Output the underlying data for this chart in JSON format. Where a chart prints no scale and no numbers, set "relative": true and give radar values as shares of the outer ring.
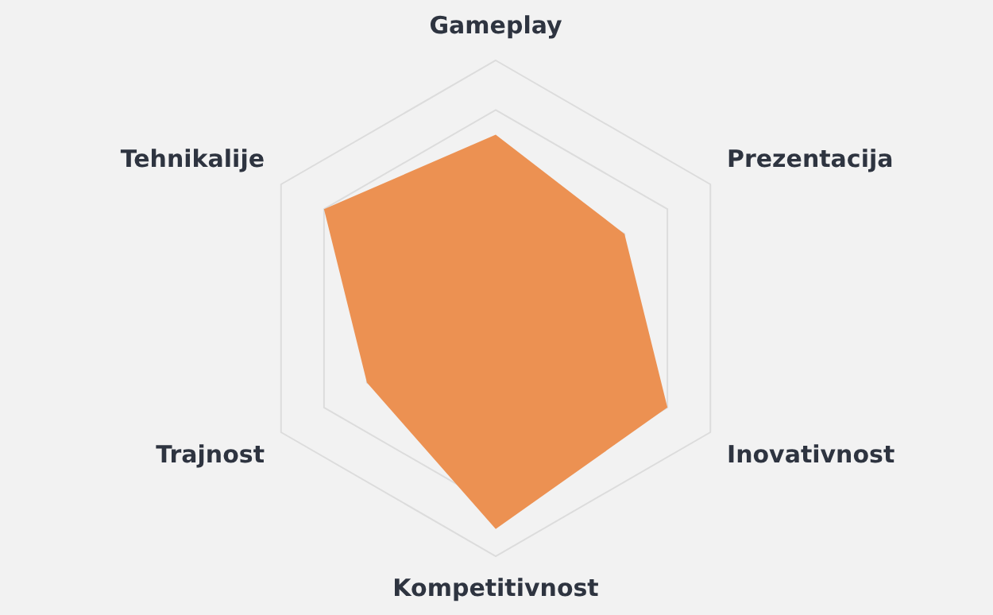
{
  "chart_data": {
    "type": "radar",
    "relative": true,
    "categories": [
      "Gameplay",
      "Prezentacija",
      "Inovativnost",
      "Kompetitivnost",
      "Trajnost",
      "Tehnikalije"
    ],
    "marker": "none",
    "legend": false,
    "grid": true,
    "series": [
      {
        "color": "#ec9152",
        "values": [
          0.7,
          0.6,
          0.8,
          0.89,
          0.6,
          0.8
        ]
      }
    ]
  }
}
